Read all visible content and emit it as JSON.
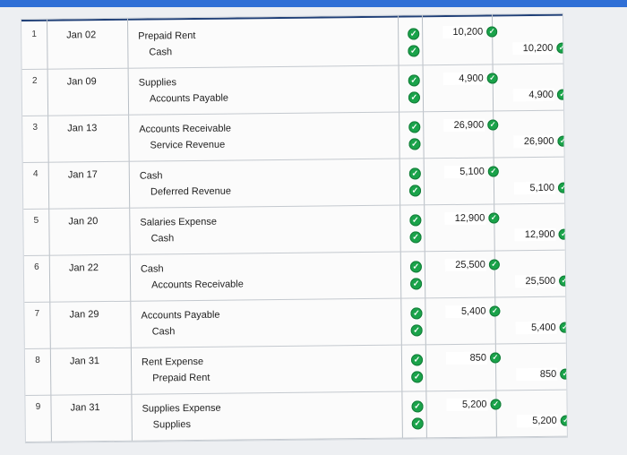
{
  "entries": [
    {
      "number": "1",
      "date": "Jan 02",
      "debit_account": "Prepaid Rent",
      "credit_account": "Cash",
      "debit_amount": "10,200",
      "credit_amount": "10,200"
    },
    {
      "number": "2",
      "date": "Jan 09",
      "debit_account": "Supplies",
      "credit_account": "Accounts Payable",
      "debit_amount": "4,900",
      "credit_amount": "4,900"
    },
    {
      "number": "3",
      "date": "Jan 13",
      "debit_account": "Accounts Receivable",
      "credit_account": "Service Revenue",
      "debit_amount": "26,900",
      "credit_amount": "26,900"
    },
    {
      "number": "4",
      "date": "Jan 17",
      "debit_account": "Cash",
      "credit_account": "Deferred Revenue",
      "debit_amount": "5,100",
      "credit_amount": "5,100"
    },
    {
      "number": "5",
      "date": "Jan 20",
      "debit_account": "Salaries Expense",
      "credit_account": "Cash",
      "debit_amount": "12,900",
      "credit_amount": "12,900"
    },
    {
      "number": "6",
      "date": "Jan 22",
      "debit_account": "Cash",
      "credit_account": "Accounts Receivable",
      "debit_amount": "25,500",
      "credit_amount": "25,500"
    },
    {
      "number": "7",
      "date": "Jan 29",
      "debit_account": "Accounts Payable",
      "credit_account": "Cash",
      "debit_amount": "5,400",
      "credit_amount": "5,400"
    },
    {
      "number": "8",
      "date": "Jan 31",
      "debit_account": "Rent Expense",
      "credit_account": "Prepaid Rent",
      "debit_amount": "850",
      "credit_amount": "850"
    },
    {
      "number": "9",
      "date": "Jan 31",
      "debit_account": "Supplies Expense",
      "credit_account": "Supplies",
      "debit_amount": "5,200",
      "credit_amount": "5,200"
    }
  ],
  "icons": {
    "check": "check-circle-icon"
  },
  "colors": {
    "header_rule": "#1f3f77",
    "check_green": "#1aa34a"
  }
}
